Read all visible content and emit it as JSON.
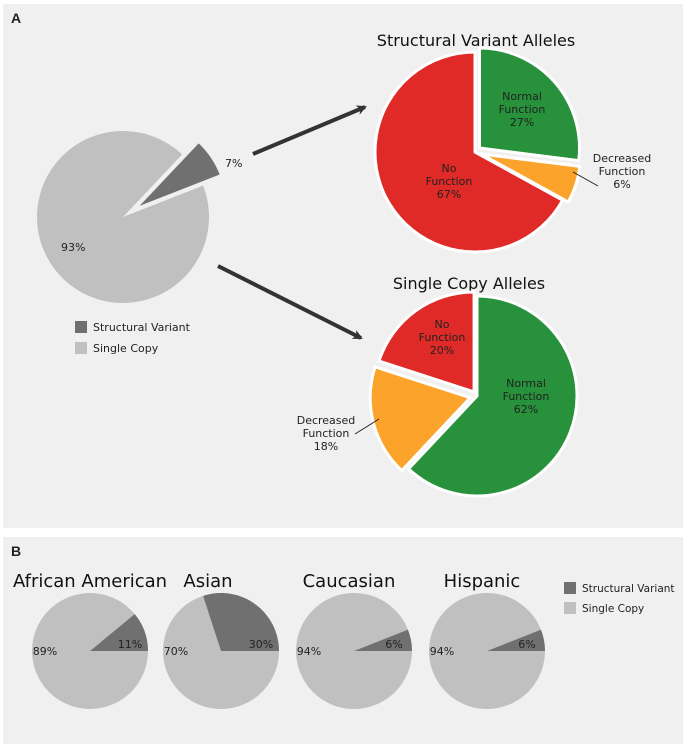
{
  "colors": {
    "structural": "#707070",
    "single": "#c0c0c0",
    "no_function": "#e02a27",
    "normal": "#27913b",
    "decreased": "#fca32b",
    "arrow": "#333333"
  },
  "panel_a": {
    "label": "A",
    "chart_data": [
      {
        "type": "pie",
        "title": "",
        "slices": [
          {
            "label": "Single Copy",
            "value": 93,
            "value_label": "93%"
          },
          {
            "label": "Structural Variant",
            "value": 7,
            "value_label": "7%"
          }
        ],
        "legend": [
          "Structural Variant",
          "Single Copy"
        ]
      },
      {
        "type": "pie",
        "title": "Structural Variant Alleles",
        "slices": [
          {
            "label": "Normal Function",
            "value": 27,
            "value_label": "27%",
            "lines": [
              "Normal",
              "Function",
              "27%"
            ]
          },
          {
            "label": "Decreased Function",
            "value": 6,
            "value_label": "6%",
            "lines": [
              "Decreased",
              "Function",
              "6%"
            ]
          },
          {
            "label": "No Function",
            "value": 67,
            "value_label": "67%",
            "lines": [
              "No",
              "Function",
              "67%"
            ]
          }
        ]
      },
      {
        "type": "pie",
        "title": "Single Copy Alleles",
        "slices": [
          {
            "label": "Normal Function",
            "value": 62,
            "value_label": "62%",
            "lines": [
              "Normal",
              "Function",
              "62%"
            ]
          },
          {
            "label": "Decreased Function",
            "value": 18,
            "value_label": "18%",
            "lines": [
              "Decreased",
              "Function",
              "18%"
            ]
          },
          {
            "label": "No Function",
            "value": 20,
            "value_label": "20%",
            "lines": [
              "No",
              "Function",
              "20%"
            ]
          }
        ]
      }
    ]
  },
  "panel_b": {
    "label": "B",
    "legend": [
      "Structural Variant",
      "Single Copy"
    ],
    "chart_data": [
      {
        "type": "pie",
        "title": "African American",
        "slices": [
          {
            "label": "Structural Variant",
            "value": 11,
            "value_label": "11%"
          },
          {
            "label": "Single Copy",
            "value": 89,
            "value_label": "89%"
          }
        ]
      },
      {
        "type": "pie",
        "title": "Asian",
        "slices": [
          {
            "label": "Structural Variant",
            "value": 30,
            "value_label": "30%"
          },
          {
            "label": "Single Copy",
            "value": 70,
            "value_label": "70%"
          }
        ]
      },
      {
        "type": "pie",
        "title": "Caucasian",
        "slices": [
          {
            "label": "Structural Variant",
            "value": 6,
            "value_label": "6%"
          },
          {
            "label": "Single Copy",
            "value": 94,
            "value_label": "94%"
          }
        ]
      },
      {
        "type": "pie",
        "title": "Hispanic",
        "slices": [
          {
            "label": "Structural Variant",
            "value": 6,
            "value_label": "6%"
          },
          {
            "label": "Single Copy",
            "value": 94,
            "value_label": "94%"
          }
        ]
      }
    ]
  }
}
